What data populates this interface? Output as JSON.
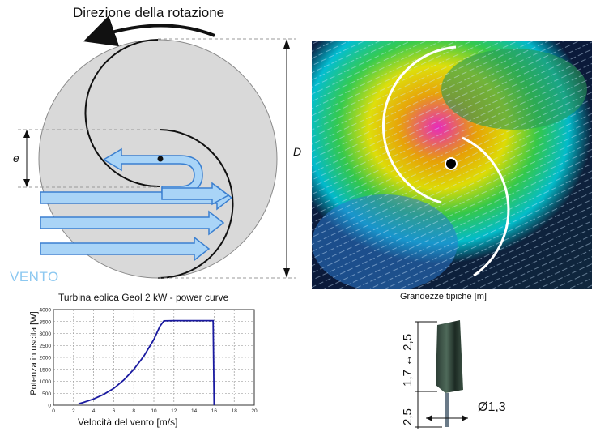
{
  "rotation": {
    "title": "Direzione della rotazione"
  },
  "rotor_diagram": {
    "e_label": "e",
    "d_label": "D"
  },
  "wind": {
    "label": "VENTO"
  },
  "chart": {
    "title": "Turbina eolica Geol 2 kW - power curve",
    "xlabel": "Velocità del vento [m/s]",
    "ylabel": "Potenza in uscita [W]"
  },
  "chart_data": {
    "type": "line",
    "title": "Turbina eolica Geol 2 kW - power curve",
    "xlabel": "Velocità del vento [m/s]",
    "ylabel": "Potenza in uscita [W]",
    "xlim": [
      0,
      20
    ],
    "ylim": [
      0,
      4000
    ],
    "xticks": [
      0,
      2,
      4,
      6,
      8,
      10,
      12,
      14,
      16,
      18,
      20
    ],
    "yticks": [
      0,
      500,
      1000,
      1500,
      2000,
      2500,
      3000,
      3500,
      4000
    ],
    "grid": true,
    "series": [
      {
        "color": "#1a1aa0",
        "points": [
          [
            2.5,
            60
          ],
          [
            3,
            120
          ],
          [
            4,
            260
          ],
          [
            5,
            450
          ],
          [
            6,
            700
          ],
          [
            7,
            1050
          ],
          [
            8,
            1500
          ],
          [
            9,
            2050
          ],
          [
            10,
            2750
          ],
          [
            10.6,
            3300
          ],
          [
            11,
            3530
          ],
          [
            12,
            3540
          ],
          [
            14,
            3540
          ],
          [
            15.9,
            3540
          ],
          [
            16,
            0
          ]
        ]
      }
    ]
  },
  "sizes": {
    "title": "Grandezze tipiche [m]",
    "height_label": "1,7 ↔ 2,5",
    "mast_label": "2,5",
    "diameter_label": "Ø1,3"
  },
  "colors": {
    "wind_arrow": "#a9d4f7",
    "wind_arrow_stroke": "#3a7fd0",
    "rotor_fill": "#d9d9d9",
    "curve": "#1a1aa0"
  }
}
